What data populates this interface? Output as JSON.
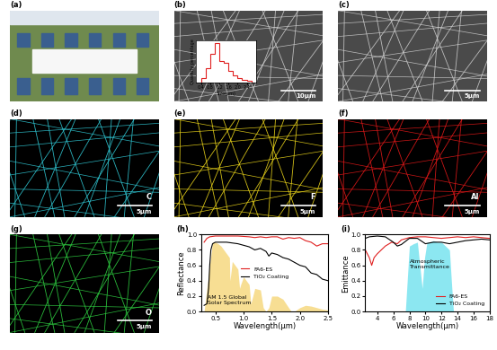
{
  "panels": [
    {
      "label": "(a)",
      "type": "photo"
    },
    {
      "label": "(b)",
      "type": "sem",
      "scale_bar": "10μm"
    },
    {
      "label": "(c)",
      "type": "sem",
      "scale_bar": "5μm"
    },
    {
      "label": "(d)",
      "type": "map",
      "element": "C",
      "color": "#2fc4d0",
      "scale_bar": "5μm"
    },
    {
      "label": "(e)",
      "type": "map",
      "element": "F",
      "color": "#e8d21a",
      "scale_bar": "5μm"
    },
    {
      "label": "(f)",
      "type": "map",
      "element": "Al",
      "color": "#e01818",
      "scale_bar": "5μm"
    },
    {
      "label": "(g)",
      "type": "map",
      "element": "O",
      "color": "#2ecc40",
      "scale_bar": "5μm"
    }
  ],
  "chart_data": [
    {
      "type": "histogram",
      "panel": "(b)",
      "xlabel": "Size(μm)",
      "ylabel": "Quantity percentage",
      "bins": [
        0.4,
        0.6,
        0.8,
        1.0,
        1.2,
        1.4,
        1.6,
        1.8,
        2.0,
        2.2,
        2.4,
        2.6
      ],
      "values": [
        3,
        10,
        20,
        28,
        15,
        14,
        8,
        5,
        3,
        2,
        1
      ],
      "color": "#e02020",
      "xlim": [
        0.2,
        2.8
      ],
      "xticks": [
        {
          "value": 0.4,
          "label": "0.4"
        },
        {
          "value": 0.8,
          "label": "0.8"
        },
        {
          "value": 1.2,
          "label": "1.2"
        },
        {
          "value": 1.6,
          "label": "1.6"
        },
        {
          "value": 2.0,
          "label": "2.0"
        },
        {
          "value": 2.4,
          "label": "2.4"
        }
      ],
      "ylim": [
        0,
        30
      ],
      "tick_labels": "x"
    },
    {
      "type": "line",
      "panel": "(h)",
      "xlabel": "Wavelength(μm)",
      "ylabel": "Reflectance",
      "xlim": [
        0.25,
        2.5
      ],
      "xticks": [
        {
          "value": 0.5,
          "label": "0.5"
        },
        {
          "value": 1.0,
          "label": "1.0"
        },
        {
          "value": 1.5,
          "label": "1.5"
        },
        {
          "value": 2.0,
          "label": "2.0"
        },
        {
          "value": 2.5,
          "label": "2.5"
        }
      ],
      "ylim": [
        0,
        1.0
      ],
      "yticks": [
        {
          "value": 0.0,
          "label": "0.0"
        },
        {
          "value": 0.2,
          "label": "0.2"
        },
        {
          "value": 0.4,
          "label": "0.4"
        },
        {
          "value": 0.6,
          "label": "0.6"
        },
        {
          "value": 0.8,
          "label": "0.8"
        },
        {
          "value": 1.0,
          "label": "1.0"
        }
      ],
      "legend": "center",
      "series": [
        {
          "name": "FA6-ES",
          "color": "#e02020",
          "x": [
            0.3,
            0.35,
            0.4,
            0.5,
            0.7,
            0.9,
            1.1,
            1.2,
            1.3,
            1.4,
            1.5,
            1.6,
            1.7,
            1.8,
            1.9,
            2.0,
            2.1,
            2.2,
            2.3,
            2.4,
            2.5
          ],
          "values": [
            0.9,
            0.95,
            0.97,
            0.98,
            0.98,
            0.98,
            0.97,
            0.96,
            0.97,
            0.96,
            0.97,
            0.97,
            0.94,
            0.96,
            0.95,
            0.96,
            0.92,
            0.9,
            0.85,
            0.88,
            0.88
          ]
        },
        {
          "name": "TiO₂ Coating",
          "color": "#000000",
          "x": [
            0.3,
            0.35,
            0.38,
            0.4,
            0.42,
            0.45,
            0.5,
            0.7,
            0.9,
            1.0,
            1.1,
            1.2,
            1.3,
            1.4,
            1.45,
            1.5,
            1.6,
            1.7,
            1.8,
            1.9,
            2.0,
            2.1,
            2.2,
            2.3,
            2.4,
            2.5
          ],
          "values": [
            0.08,
            0.1,
            0.3,
            0.6,
            0.8,
            0.88,
            0.9,
            0.9,
            0.88,
            0.86,
            0.84,
            0.8,
            0.82,
            0.78,
            0.72,
            0.76,
            0.74,
            0.7,
            0.68,
            0.64,
            0.6,
            0.58,
            0.5,
            0.48,
            0.42,
            0.4
          ]
        }
      ],
      "areas": [
        {
          "text": "AM 1.5 Global\nSolar Spectrum",
          "color": "#f2c84b",
          "x": [
            0.3,
            0.35,
            0.4,
            0.45,
            0.5,
            0.55,
            0.6,
            0.7,
            0.75,
            0.76,
            0.8,
            0.9,
            0.93,
            0.95,
            1.0,
            1.1,
            1.13,
            1.2,
            1.3,
            1.35,
            1.4,
            1.45,
            1.5,
            1.6,
            1.7,
            1.8,
            1.85,
            1.9,
            2.0,
            2.1,
            2.2,
            2.3,
            2.4,
            2.5
          ],
          "values": [
            0.0,
            0.3,
            0.6,
            0.9,
            0.9,
            0.88,
            0.85,
            0.75,
            0.7,
            0.4,
            0.65,
            0.55,
            0.3,
            0.35,
            0.45,
            0.35,
            0.1,
            0.3,
            0.28,
            0.05,
            0.0,
            0.05,
            0.2,
            0.2,
            0.16,
            0.05,
            0.0,
            0.0,
            0.05,
            0.08,
            0.07,
            0.05,
            0.03,
            0.02
          ]
        }
      ]
    },
    {
      "type": "line",
      "panel": "(i)",
      "xlabel": "Wavelength(μm)",
      "ylabel": "Emittance",
      "xlim": [
        2.5,
        18
      ],
      "xticks": [
        4,
        6,
        8,
        10,
        12,
        14,
        16,
        18
      ],
      "ylim": [
        0,
        1.0
      ],
      "yticks": [
        {
          "value": 0.0,
          "label": "0.0"
        },
        {
          "value": 0.2,
          "label": "0.2"
        },
        {
          "value": 0.4,
          "label": "0.4"
        },
        {
          "value": 0.6,
          "label": "0.6"
        },
        {
          "value": 0.8,
          "label": "0.8"
        },
        {
          "value": 1.0,
          "label": "1.0"
        }
      ],
      "legend": "lower right",
      "series": [
        {
          "name": "FA6-ES",
          "color": "#e02020",
          "x": [
            2.5,
            3,
            3.3,
            3.6,
            4,
            5,
            5.8,
            6.5,
            7,
            8,
            9,
            10,
            11,
            12,
            13,
            14,
            15,
            16,
            17,
            18
          ],
          "values": [
            0.8,
            0.7,
            0.6,
            0.7,
            0.75,
            0.85,
            0.9,
            0.88,
            0.93,
            0.96,
            0.97,
            0.97,
            0.96,
            0.95,
            0.96,
            0.97,
            0.96,
            0.97,
            0.96,
            0.95
          ]
        },
        {
          "name": "TiO₂ Coating",
          "color": "#000000",
          "x": [
            2.5,
            3,
            4,
            5,
            6,
            6.5,
            7,
            8,
            9,
            10,
            11,
            12,
            13,
            14,
            15,
            16,
            17,
            18
          ],
          "values": [
            0.95,
            0.97,
            0.98,
            0.97,
            0.9,
            0.85,
            0.87,
            0.95,
            0.95,
            0.88,
            0.9,
            0.9,
            0.88,
            0.9,
            0.92,
            0.93,
            0.94,
            0.93
          ]
        }
      ],
      "areas": [
        {
          "text": "Atmospheric\nTransmittance",
          "color": "#3fd8e8",
          "x": [
            7.5,
            8,
            8.5,
            9,
            9.3,
            9.6,
            9.9,
            10.2,
            10.5,
            11,
            11.5,
            12,
            12.5,
            13,
            13.3,
            13.5
          ],
          "values": [
            0,
            0.85,
            0.88,
            0.9,
            0.6,
            0.3,
            0.7,
            0.9,
            0.9,
            0.92,
            0.9,
            0.9,
            0.85,
            0.8,
            0.3,
            0
          ]
        }
      ]
    }
  ]
}
